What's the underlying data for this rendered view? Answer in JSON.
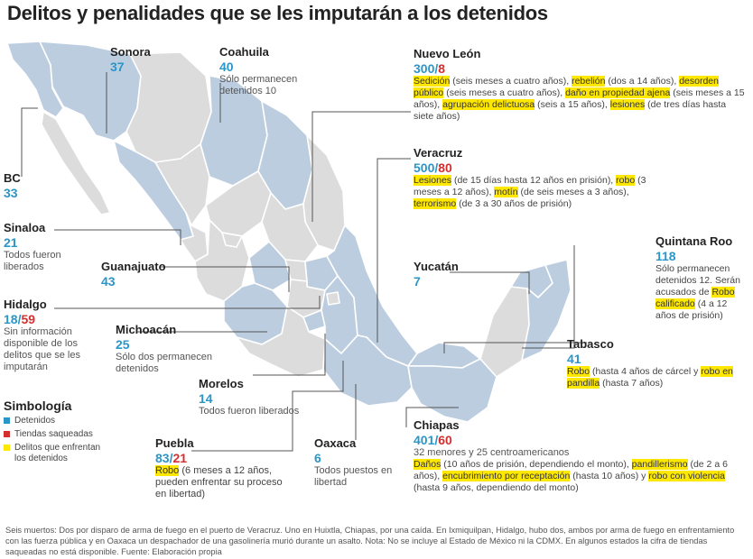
{
  "title": "Delitos y penalidades que se les imputarán a los detenidos",
  "colors": {
    "detenidos": "#2a96c8",
    "tiendas": "#d32f2f",
    "delitos": "#ffe800",
    "state_fill": "#bccde0",
    "other_fill": "#dcdcdc"
  },
  "states": {
    "sonora": {
      "name": "Sonora",
      "num": "37"
    },
    "coahuila": {
      "name": "Coahuila",
      "num": "40",
      "note": "Sólo permanecen detenidos 10"
    },
    "bc": {
      "name": "BC",
      "num": "33"
    },
    "sinaloa": {
      "name": "Sinaloa",
      "num": "21",
      "note": "Todos fueron liberados"
    },
    "guanajuato": {
      "name": "Guanajuato",
      "num": "43"
    },
    "hidalgo": {
      "name": "Hidalgo",
      "num": "18",
      "num2": "59",
      "note": "Sin información disponible de los delitos que se les imputarán"
    },
    "michoacan": {
      "name": "Michoacán",
      "num": "25",
      "note": "Sólo dos permanecen detenidos"
    },
    "morelos": {
      "name": "Morelos",
      "num": "14",
      "note": "Todos fueron liberados"
    },
    "puebla": {
      "name": "Puebla",
      "num": "83",
      "num2": "21",
      "crime": "Robo",
      "note": " (6 meses a 12 años, pueden enfrentar su proceso en libertad)"
    },
    "oaxaca": {
      "name": "Oaxaca",
      "num": "6",
      "note": "Todos puestos en libertad"
    },
    "nuevoleon": {
      "name": "Nuevo León",
      "num": "300",
      "num2": "8",
      "c1": "Sedición",
      "t1": " (seis meses a cuatro años), ",
      "c2": "rebelión",
      "t2": " (dos a 14 años), ",
      "c3": "desorden público",
      "t3": " (seis meses a cuatro años), ",
      "c4": "daño en propiedad ajena",
      "t4": " (seis meses a 15 años), ",
      "c5": "agrupación delictuosa",
      "t5": " (seis a 15 años), ",
      "c6": "lesiones",
      "t6": " (de tres días hasta siete años)"
    },
    "veracruz": {
      "name": "Veracruz",
      "num": "500",
      "num2": "80",
      "c1": "Lesiones",
      "t1": " (de 15 días hasta 12 años en prisión), ",
      "c2": "robo",
      "t2": " (3 meses a 12 años), ",
      "c3": "motín",
      "t3": " (de seis meses a 3 años), ",
      "c4": "terrorismo",
      "t4": " (de 3 a 30 años de prisión)"
    },
    "quintanaroo": {
      "name": "Quintana Roo",
      "num": "118",
      "note": "Sólo permanecen detenidos 12. Serán acusados de ",
      "crime": "Robo calificado",
      "t2": " (4 a 12 años de prisión)"
    },
    "yucatan": {
      "name": "Yucatán",
      "num": "7"
    },
    "tabasco": {
      "name": "Tabasco",
      "num": "41",
      "c1": "Robo",
      "t1": " (hasta 4 años de cárcel y ",
      "c2": "robo en pandilla",
      "t2": " (hasta 7 años)"
    },
    "chiapas": {
      "name": "Chiapas",
      "num": "401",
      "num2": "60",
      "note": "32 menores y 25 centroamericanos",
      "c1": "Daños",
      "t1": " (10 años de prisión, dependiendo el monto), ",
      "c2": "pandillerismo",
      "t2": " (de 2 a 6 años), ",
      "c3": "encubrimiento por receptación",
      "t3": " (hasta 10 años) y ",
      "c4": "robo con violencia",
      "t4": " (hasta 9 años, dependiendo del monto)"
    }
  },
  "legend": {
    "title": "Simbología",
    "detenidos": "Detenidos",
    "tiendas": "Tiendas saqueadas",
    "delitos": "Delitos que enfrentan los detenidos"
  },
  "footnote": "Seis muertos: Dos por disparo de arma de fuego en el puerto de Veracruz. Uno en Huixtla, Chiapas, por una caída. En Ixmiquilpan, Hidalgo, hubo dos, ambos por arma de fuego en enfrentamiento con las fuerza pública y en Oaxaca un despachador de una gasolinería murió durante un asalto. Nota: No se incluye al Estado de México ni la CDMX. En algunos estados la cifra de tiendas saqueadas no está disponible. Fuente: Elaboración propia"
}
